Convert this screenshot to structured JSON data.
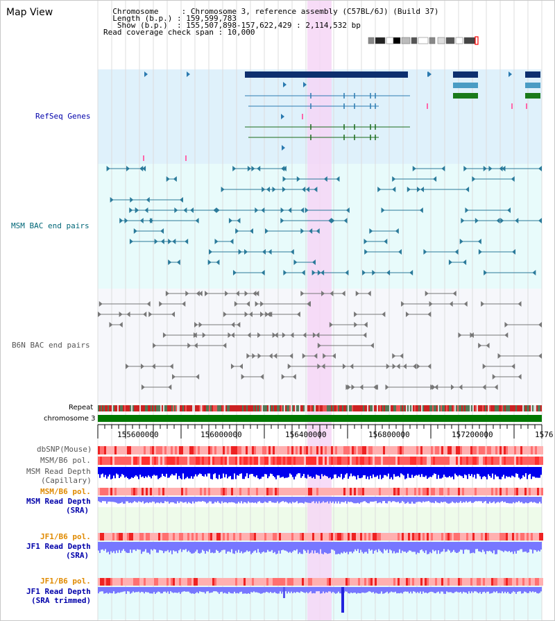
{
  "app": {
    "title": "Map View"
  },
  "header": {
    "lines": [
      "  Chromosome     : Chromosome 3, reference assembly (C57BL/6J) (Build 37)",
      "  Length (b.p.) : 159,599,783",
      "   Show (b.p.)  : 155,507,898-157,622,429 : 2,114,532 bp",
      "Read coverage check span : 10,000"
    ]
  },
  "tracks": {
    "refseq": "RefSeq Genes",
    "msm_bac": "MSM BAC end pairs",
    "b6n_bac": "B6N BAC end pairs",
    "repeat": "Repeat",
    "chromosome": "chromosome 3",
    "dbsnp": "dbSNP(Mouse)",
    "msm_pol": "MSM/B6 pol.",
    "msm_depth_cap_1": "MSM Read Depth",
    "msm_depth_cap_2": "(Capillary)",
    "msm_pol_sra": "MSM/B6 pol.",
    "msm_depth_sra_1": "MSM Read Depth",
    "msm_depth_sra_2": "(SRA)",
    "jf1_pol": "JF1/B6 pol.",
    "jf1_depth_1": "JF1 Read Depth",
    "jf1_depth_2": "(SRA)",
    "jf1_pol_trim": "JF1/B6 pol.",
    "jf1_trim_1": "JF1 Read Depth",
    "jf1_trim_2": "(SRA trimmed)"
  },
  "ruler": {
    "ticks": [
      "155600000",
      "156000000",
      "156400000",
      "156800000",
      "157200000",
      "1576"
    ]
  },
  "colors": {
    "refseq_bg": "#dff1fb",
    "bac_bg": "#e8fbfb",
    "b6n_bg": "#f6f7fb",
    "highlight": "#f6d6f6",
    "chromosome": "#007700",
    "depth_dark": "#0000ee",
    "depth_light": "#7777ff",
    "label_blue": "#0000aa",
    "label_gray": "#555555",
    "label_orange": "#e08a00",
    "label_teal": "#006677"
  }
}
